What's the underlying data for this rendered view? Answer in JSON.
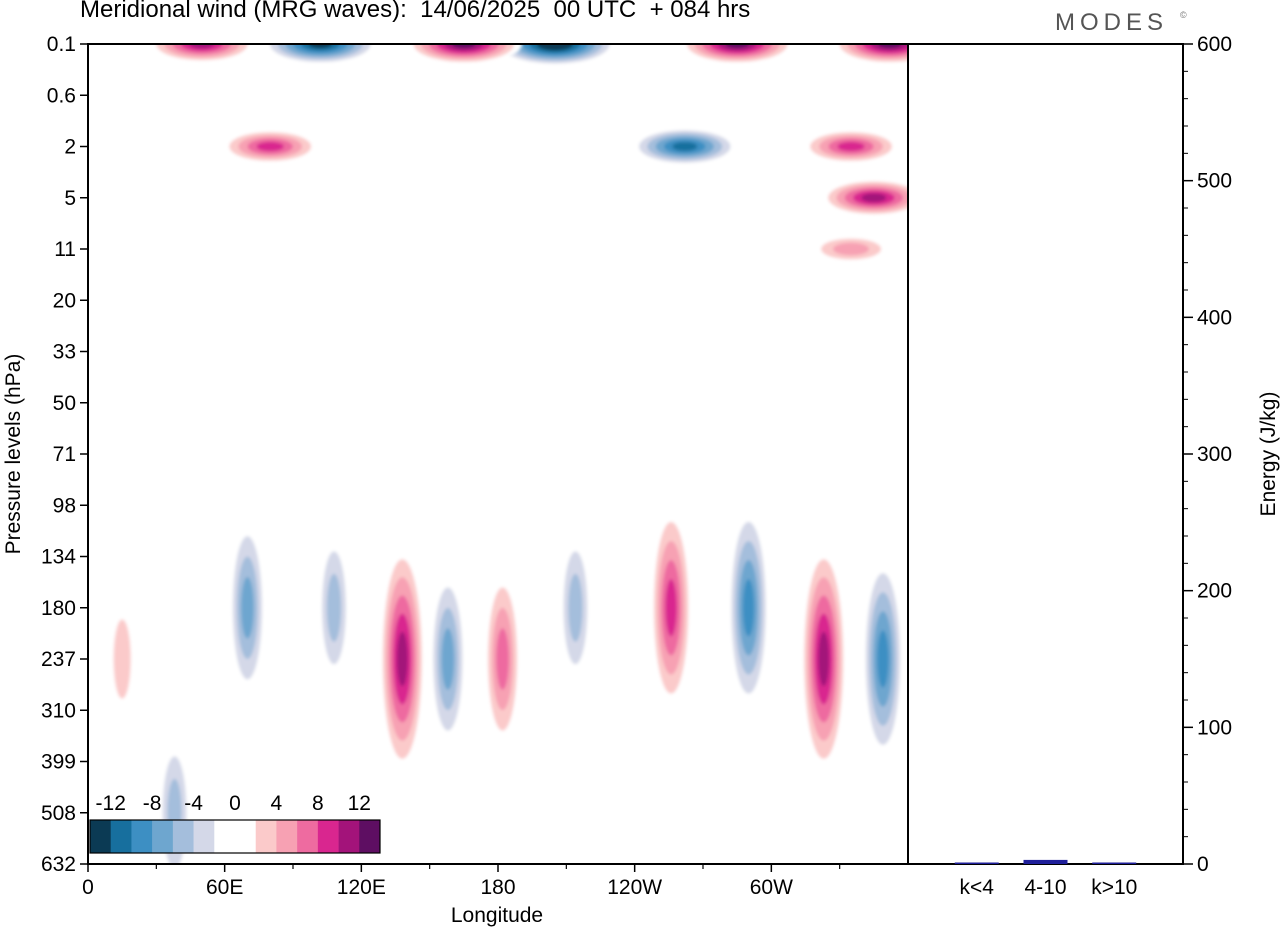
{
  "title": "Meridional wind (MRG waves):  14/06/2025  00 UTC  + 084 hrs",
  "logo": "MODES",
  "logo_mark": "©",
  "chart_data": [
    {
      "type": "heatmap",
      "title": "Meridional wind (MRG waves):  14/06/2025  00 UTC  + 084 hrs",
      "xlabel": "Longitude",
      "ylabel": "Pressure levels (hPa)",
      "x_ticks": [
        "0",
        "60E",
        "120E",
        "180",
        "120W",
        "60W"
      ],
      "x_tick_positions_deg": [
        0,
        60,
        120,
        180,
        240,
        300
      ],
      "xlim_deg": [
        0,
        360
      ],
      "y_ticks": [
        "0.1",
        "0.6",
        "2",
        "5",
        "11",
        "20",
        "33",
        "50",
        "71",
        "98",
        "134",
        "180",
        "237",
        "310",
        "399",
        "508",
        "632"
      ],
      "y_scale": "pressure levels (equally spaced labels)",
      "colorbar": {
        "labels": [
          "-12",
          "-8",
          "-4",
          "0",
          "4",
          "8",
          "12"
        ],
        "colors": [
          "#0b3a54",
          "#176f9e",
          "#3d8fc3",
          "#6ea6cf",
          "#a4bedc",
          "#d4d8e8",
          "#ffffff",
          "#ffffff",
          "#fbcaca",
          "#f7a1b3",
          "#ee6ba0",
          "#d9268f",
          "#a3137a",
          "#5e0e62"
        ],
        "placement": "bottom-left"
      },
      "features": [
        {
          "lon": 102,
          "level": "0.1",
          "value": -14
        },
        {
          "lon": 205,
          "level": "0.1",
          "value": -16
        },
        {
          "lon": 165,
          "level": "0.1",
          "value": 14
        },
        {
          "lon": 285,
          "level": "0.1",
          "value": 13
        },
        {
          "lon": 352,
          "level": "0.1",
          "value": 14
        },
        {
          "lon": 50,
          "level": "0.1",
          "value": 12
        },
        {
          "lon": 80,
          "level": "2",
          "value": 10
        },
        {
          "lon": 262,
          "level": "2",
          "value": -12
        },
        {
          "lon": 335,
          "level": "2",
          "value": 10
        },
        {
          "lon": 345,
          "level": "5",
          "value": 11
        },
        {
          "lon": 335,
          "level": "11",
          "value": 6
        },
        {
          "lon": 70,
          "level": "180",
          "value": -7
        },
        {
          "lon": 108,
          "level": "180",
          "value": -6
        },
        {
          "lon": 138,
          "level": "237",
          "value": 11
        },
        {
          "lon": 158,
          "level": "237",
          "value": -7
        },
        {
          "lon": 182,
          "level": "237",
          "value": 8
        },
        {
          "lon": 214,
          "level": "180",
          "value": -5
        },
        {
          "lon": 256,
          "level": "180",
          "value": 10
        },
        {
          "lon": 290,
          "level": "180",
          "value": -10
        },
        {
          "lon": 323,
          "level": "237",
          "value": 12
        },
        {
          "lon": 349,
          "level": "237",
          "value": -9
        },
        {
          "lon": 15,
          "level": "237",
          "value": 4
        },
        {
          "lon": 38,
          "level": "508",
          "value": -6
        }
      ]
    },
    {
      "type": "bar",
      "ylabel": "Energy (J/kg)",
      "categories": [
        "k<4",
        "4-10",
        "k>10"
      ],
      "values": [
        0.5,
        3,
        0.5
      ],
      "ylim": [
        0,
        600
      ],
      "y_ticks": [
        "0",
        "100",
        "200",
        "300",
        "400",
        "500",
        "600"
      ],
      "bar_color": "#1f1f9a"
    }
  ]
}
